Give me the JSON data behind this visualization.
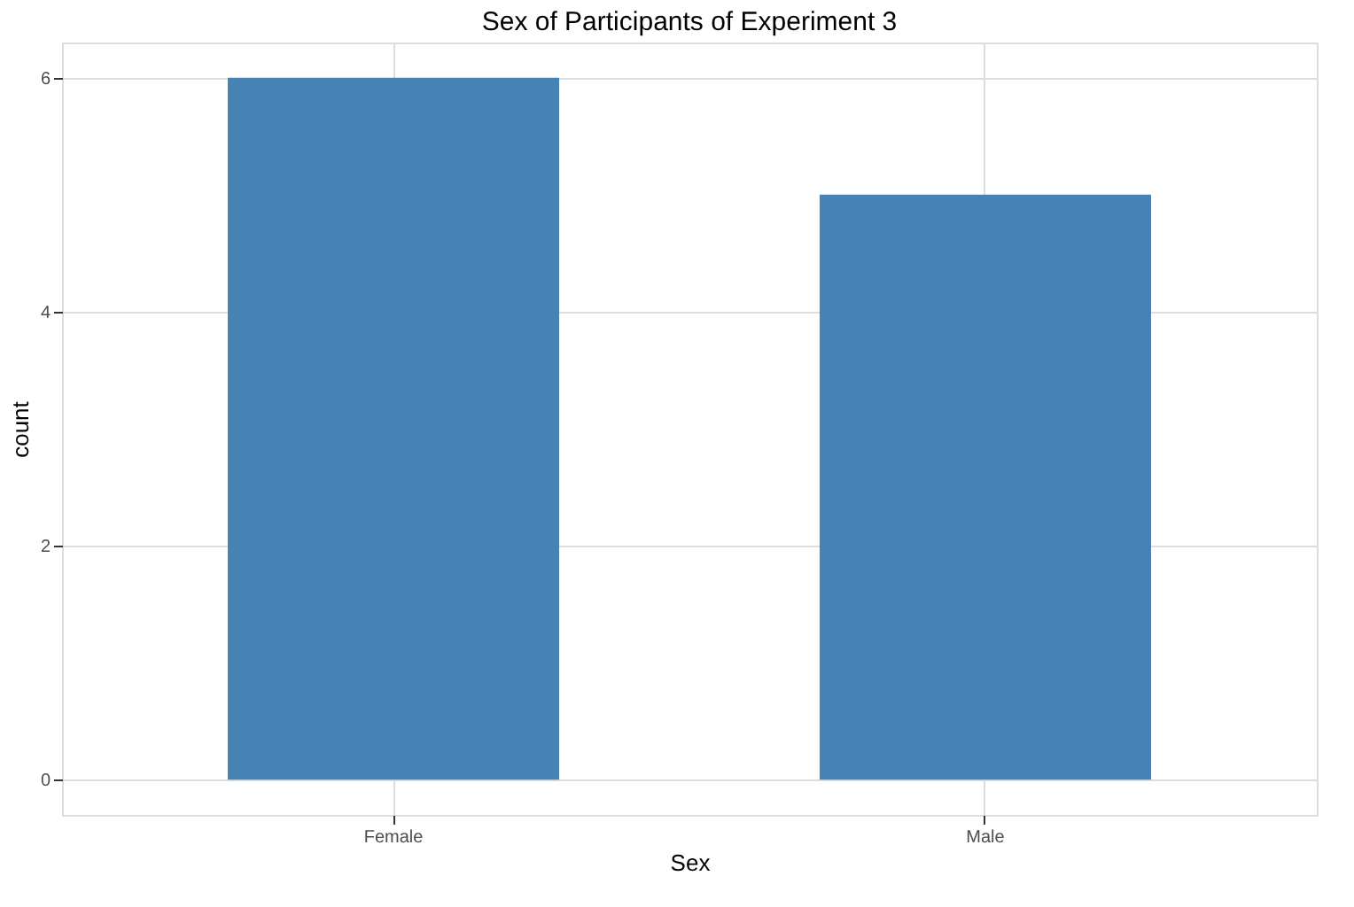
{
  "chart_data": {
    "type": "bar",
    "title": "Sex of Participants of Experiment 3",
    "xlabel": "Sex",
    "ylabel": "count",
    "categories": [
      "Female",
      "Male"
    ],
    "values": [
      6,
      5
    ],
    "color": "#4682b4",
    "ylim": [
      -0.3,
      6.3
    ],
    "yticks": [
      0,
      2,
      4,
      6
    ],
    "grid": true
  }
}
